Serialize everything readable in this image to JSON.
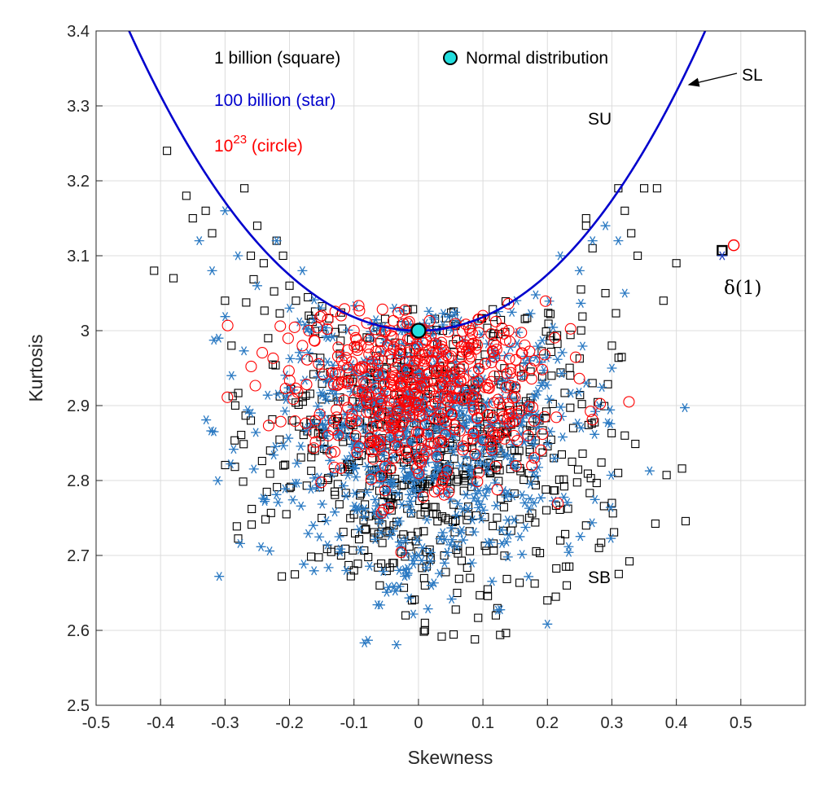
{
  "chart_data": {
    "type": "scatter",
    "xlabel": "Skewness",
    "ylabel": "Kurtosis",
    "xlim": [
      -0.5,
      0.6
    ],
    "ylim": [
      2.5,
      3.4
    ],
    "xticks": [
      "-0.5",
      "-0.4",
      "-0.3",
      "-0.2",
      "-0.1",
      "0",
      "0.1",
      "0.2",
      "0.3",
      "0.4",
      "0.5"
    ],
    "yticks": [
      "2.5",
      "2.6",
      "2.7",
      "2.8",
      "2.9",
      "3",
      "3.1",
      "3.2",
      "3.3",
      "3.4"
    ],
    "grid": true,
    "series": [
      {
        "name": "1 billion (square)",
        "marker": "square",
        "color": "#000000",
        "count": 700,
        "center": [
          0.02,
          2.86
        ],
        "spread": [
          0.13,
          0.12
        ],
        "x": [
          -0.39,
          -0.36,
          -0.35,
          -0.41,
          -0.38,
          -0.33,
          -0.32,
          -0.3,
          -0.29,
          -0.27,
          -0.25,
          -0.26,
          -0.24,
          -0.22,
          -0.21,
          -0.2,
          -0.19,
          -0.17,
          -0.26,
          -0.23,
          -0.2,
          -0.15,
          -0.12,
          -0.1,
          -0.06,
          0.12,
          0.2,
          0.23,
          0.26,
          0.27,
          0.29,
          0.31,
          0.32,
          0.33,
          0.34,
          0.35,
          0.37,
          0.38,
          0.4,
          0.3,
          0.27,
          0.24,
          0.21,
          0.18,
          0.32,
          0.3,
          0.28,
          0.26,
          0.22,
          0.26,
          -0.01,
          -0.02,
          0.01,
          0.04,
          0.06,
          0.08,
          -0.04,
          -0.05,
          0.01,
          0.01
        ],
        "y": [
          3.24,
          3.18,
          3.15,
          3.08,
          3.07,
          3.16,
          3.13,
          3.04,
          2.98,
          3.19,
          3.14,
          3.1,
          3.09,
          3.12,
          3.1,
          3.06,
          3.04,
          3.02,
          2.88,
          2.84,
          2.79,
          2.75,
          2.7,
          2.68,
          2.66,
          2.62,
          2.64,
          2.66,
          3.15,
          3.11,
          3.05,
          3.19,
          3.16,
          3.13,
          3.1,
          3.19,
          3.19,
          3.04,
          3.09,
          2.98,
          2.93,
          2.87,
          2.83,
          2.8,
          2.86,
          2.77,
          2.71,
          2.74,
          2.72,
          3.14,
          2.64,
          2.62,
          2.66,
          2.7,
          2.65,
          2.67,
          2.69,
          2.73,
          2.61,
          2.6
        ]
      },
      {
        "name": "100 billion (star)",
        "marker": "star",
        "color": "#2a79c2",
        "count": 760,
        "center": [
          0.01,
          2.87
        ],
        "spread": [
          0.12,
          0.1
        ],
        "x": [
          -0.34,
          -0.32,
          -0.3,
          -0.28,
          -0.25,
          -0.22,
          -0.2,
          -0.18,
          0.22,
          0.25,
          0.27,
          0.29,
          0.31,
          0.32,
          -0.31,
          -0.29,
          -0.26,
          0.26,
          0.28,
          0.3,
          -0.03,
          0.0,
          0.02,
          -0.02
        ],
        "y": [
          3.12,
          3.08,
          3.16,
          3.1,
          3.06,
          3.12,
          3.03,
          3.08,
          3.1,
          3.08,
          3.12,
          3.14,
          3.12,
          3.05,
          2.99,
          2.94,
          2.89,
          2.93,
          2.9,
          2.95,
          2.68,
          2.7,
          2.66,
          2.72
        ]
      },
      {
        "name": "10^23 (circle)",
        "marker": "circle",
        "color": "#ff0000",
        "count": 520,
        "center": [
          0.0,
          2.92
        ],
        "spread": [
          0.1,
          0.06
        ],
        "x": [
          -0.18,
          -0.17,
          -0.15,
          -0.12,
          -0.1,
          -0.08,
          0.08,
          0.1,
          0.12,
          0.14,
          0.16,
          0.18,
          -0.16,
          -0.14,
          0.15,
          0.17,
          -0.02,
          0.0,
          0.02
        ],
        "y": [
          2.98,
          3.0,
          3.02,
          3.02,
          3.0,
          3.01,
          3.0,
          3.02,
          2.98,
          3.0,
          2.97,
          2.96,
          2.88,
          2.86,
          2.88,
          2.86,
          2.84,
          2.83,
          2.85
        ]
      }
    ],
    "curve": {
      "label": "SL",
      "color": "#0000cd",
      "equation": "k = 3 + 0.5 * s^2 * (1 + s)"
    },
    "normal_point": {
      "label": "Normal distribution",
      "color": "#22dede",
      "x": 0,
      "y": 3
    },
    "delta_point": {
      "label": "δ(1)",
      "square": [
        0.471,
        3.107
      ],
      "star": [
        0.471,
        3.1
      ],
      "circle": [
        0.489,
        3.114
      ]
    },
    "annotations": {
      "su": "SU",
      "sb": "SB"
    },
    "legend": {
      "placement": "top-left",
      "square_text": "1 billion (square)",
      "star_text": "100 billion (star)",
      "circle_base": "10",
      "circle_exp": "23",
      "circle_rest": " (circle)"
    }
  }
}
